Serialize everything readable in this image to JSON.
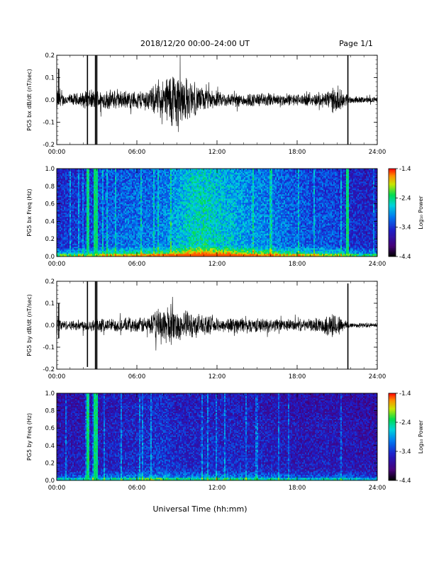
{
  "header": {
    "title": "2018/12/20  00:00–24:00 UT",
    "page": "Page 1/1"
  },
  "footer": {
    "xlabel": "Universal Time (hh:mm)"
  },
  "colors": {
    "trace": "#000000",
    "background": "#ffffff",
    "spectrogram_bg": "#2a0a5c"
  },
  "chart_data": [
    {
      "type": "line",
      "id": "bx-dbdt",
      "ylabel": "PG5 bx dB/dt (nT/sec)",
      "ylim": [
        -0.2,
        0.2
      ],
      "yticks": [
        "0.2",
        "0.1",
        "0.0",
        "-0.1",
        "-0.2"
      ],
      "yticks_values": [
        0.2,
        0.1,
        0.0,
        -0.1,
        -0.2
      ],
      "xlim": [
        0,
        24
      ],
      "xticks": [
        "00:00",
        "06:00",
        "12:00",
        "18:00",
        "24:00"
      ],
      "xticks_values": [
        0,
        6,
        12,
        18,
        24
      ],
      "envelope": {
        "hours": [
          0,
          0.5,
          1,
          2,
          2.5,
          3,
          4,
          5,
          6,
          7,
          8,
          8.5,
          9,
          9.5,
          10,
          11,
          12,
          13,
          14,
          15,
          16,
          17,
          18,
          19,
          20,
          20.5,
          21,
          21.5,
          22,
          23,
          24
        ],
        "amplitude": [
          0.06,
          0.03,
          0.03,
          0.04,
          0.05,
          0.05,
          0.05,
          0.045,
          0.045,
          0.06,
          0.1,
          0.15,
          0.16,
          0.13,
          0.09,
          0.06,
          0.04,
          0.035,
          0.035,
          0.035,
          0.035,
          0.03,
          0.03,
          0.03,
          0.04,
          0.06,
          0.06,
          0.04,
          0.02,
          0.015,
          0.015
        ]
      },
      "spikes": [
        {
          "hour": 0.15,
          "max": 0.14,
          "min": -0.02
        },
        {
          "hour": 2.3,
          "max": 0.2,
          "min": -0.2
        },
        {
          "hour": 2.9,
          "max": 0.2,
          "min": -0.2
        },
        {
          "hour": 3.0,
          "max": 0.2,
          "min": -0.2
        },
        {
          "hour": 21.8,
          "max": 0.2,
          "min": -0.2
        }
      ]
    },
    {
      "type": "heatmap",
      "id": "bx-spec",
      "ylabel": "PG5 bx Freq (Hz)",
      "ylim": [
        0,
        1.0
      ],
      "yticks": [
        "1.0",
        "0.8",
        "0.6",
        "0.4",
        "0.2",
        "0.0"
      ],
      "yticks_values": [
        1.0,
        0.8,
        0.6,
        0.4,
        0.2,
        0.0
      ],
      "xlim": [
        0,
        24
      ],
      "xticks": [
        "00:00",
        "06:00",
        "12:00",
        "18:00",
        "24:00"
      ],
      "xticks_values": [
        0,
        6,
        12,
        18,
        24
      ],
      "colorbar": {
        "label": "Log₁₀ Power",
        "ticks": [
          "-1.4",
          "-2.4",
          "-3.4",
          "-4.4"
        ],
        "ticks_values": [
          -1.4,
          -2.4,
          -3.4,
          -4.4
        ],
        "range": [
          -4.4,
          -1.4
        ]
      },
      "activity": {
        "hours": [
          0,
          2,
          4,
          6,
          7,
          8,
          9,
          10,
          11,
          12,
          13,
          14,
          15,
          16,
          17,
          18,
          19,
          20,
          21,
          22,
          23,
          24
        ],
        "level": [
          0.25,
          0.3,
          0.45,
          0.5,
          0.5,
          0.55,
          0.7,
          0.85,
          0.9,
          0.8,
          0.75,
          0.65,
          0.6,
          0.55,
          0.5,
          0.45,
          0.4,
          0.4,
          0.35,
          0.25,
          0.2,
          0.2
        ]
      },
      "bright_columns": [
        2.3,
        2.9,
        3.0,
        21.8
      ]
    },
    {
      "type": "line",
      "id": "by-dbdt",
      "ylabel": "PG5 by dB/dt (nT/sec)",
      "ylim": [
        -0.2,
        0.2
      ],
      "yticks": [
        "0.2",
        "0.1",
        "0.0",
        "-0.1",
        "-0.2"
      ],
      "yticks_values": [
        0.2,
        0.1,
        0.0,
        -0.1,
        -0.2
      ],
      "xlim": [
        0,
        24
      ],
      "xticks": [
        "00:00",
        "06:00",
        "12:00",
        "18:00",
        "24:00"
      ],
      "xticks_values": [
        0,
        6,
        12,
        18,
        24
      ],
      "envelope": {
        "hours": [
          0,
          0.5,
          1,
          2,
          3,
          4,
          5,
          6,
          7,
          7.5,
          8,
          8.5,
          9,
          10,
          11,
          12,
          13,
          14,
          15,
          16,
          17,
          18,
          19,
          20,
          20.5,
          21,
          21.5,
          22,
          23,
          24
        ],
        "amplitude": [
          0.05,
          0.025,
          0.025,
          0.03,
          0.035,
          0.035,
          0.035,
          0.035,
          0.05,
          0.08,
          0.1,
          0.1,
          0.08,
          0.07,
          0.05,
          0.035,
          0.04,
          0.04,
          0.035,
          0.035,
          0.03,
          0.03,
          0.03,
          0.04,
          0.07,
          0.06,
          0.03,
          0.015,
          0.012,
          0.012
        ]
      },
      "spikes": [
        {
          "hour": 0.15,
          "max": 0.1,
          "min": -0.06
        },
        {
          "hour": 2.3,
          "max": 0.2,
          "min": -0.19
        },
        {
          "hour": 2.9,
          "max": 0.2,
          "min": -0.2
        },
        {
          "hour": 3.0,
          "max": 0.2,
          "min": -0.2
        },
        {
          "hour": 21.8,
          "max": 0.19,
          "min": -0.2
        }
      ]
    },
    {
      "type": "heatmap",
      "id": "by-spec",
      "ylabel": "PG5 by Freq (Hz)",
      "ylim": [
        0,
        1.0
      ],
      "yticks": [
        "1.0",
        "0.8",
        "0.6",
        "0.4",
        "0.2",
        "0.0"
      ],
      "yticks_values": [
        1.0,
        0.8,
        0.6,
        0.4,
        0.2,
        0.0
      ],
      "xlim": [
        0,
        24
      ],
      "xticks": [
        "00:00",
        "06:00",
        "12:00",
        "18:00",
        "24:00"
      ],
      "xticks_values": [
        0,
        6,
        12,
        18,
        24
      ],
      "colorbar": {
        "label": "Log₁₀ Power",
        "ticks": [
          "-1.4",
          "-2.4",
          "-3.4",
          "-4.4"
        ],
        "ticks_values": [
          -1.4,
          -2.4,
          -3.4,
          -4.4
        ],
        "range": [
          -4.4,
          -1.4
        ]
      },
      "activity": {
        "hours": [
          0,
          2,
          4,
          6,
          7,
          8,
          9,
          10,
          11,
          12,
          13,
          14,
          15,
          16,
          17,
          18,
          19,
          20,
          21,
          22,
          23,
          24
        ],
        "level": [
          0.1,
          0.12,
          0.15,
          0.2,
          0.25,
          0.28,
          0.2,
          0.18,
          0.2,
          0.2,
          0.2,
          0.18,
          0.15,
          0.15,
          0.12,
          0.1,
          0.1,
          0.12,
          0.12,
          0.08,
          0.06,
          0.06
        ]
      },
      "bright_columns": [
        2.3,
        2.9,
        3.0
      ]
    }
  ]
}
